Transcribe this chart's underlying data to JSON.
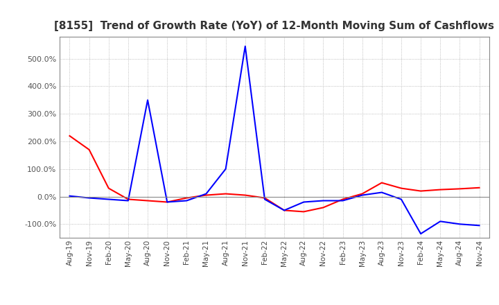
{
  "title": "[8155]  Trend of Growth Rate (YoY) of 12-Month Moving Sum of Cashflows",
  "title_fontsize": 11,
  "ylim": [
    -150,
    580
  ],
  "yticks": [
    -100,
    0,
    100,
    200,
    300,
    400,
    500
  ],
  "background_color": "#ffffff",
  "grid_color": "#aaaaaa",
  "operating_color": "#ff0000",
  "free_color": "#0000ff",
  "x_labels": [
    "Aug-19",
    "Nov-19",
    "Feb-20",
    "May-20",
    "Aug-20",
    "Nov-20",
    "Feb-21",
    "May-21",
    "Aug-21",
    "Nov-21",
    "Feb-22",
    "May-22",
    "Aug-22",
    "Nov-22",
    "Feb-23",
    "May-23",
    "Aug-23",
    "Nov-23",
    "Feb-24",
    "May-24",
    "Aug-24",
    "Nov-24"
  ],
  "operating_cashflow": [
    220,
    170,
    30,
    -10,
    -15,
    -20,
    -5,
    5,
    10,
    5,
    -5,
    -50,
    -55,
    -40,
    -10,
    10,
    50,
    30,
    20,
    25,
    28,
    32
  ],
  "free_cashflow": [
    2,
    -5,
    -10,
    -15,
    350,
    -20,
    -15,
    10,
    100,
    545,
    -10,
    -50,
    -20,
    -15,
    -15,
    5,
    15,
    -10,
    -135,
    -90,
    -100,
    -105
  ]
}
